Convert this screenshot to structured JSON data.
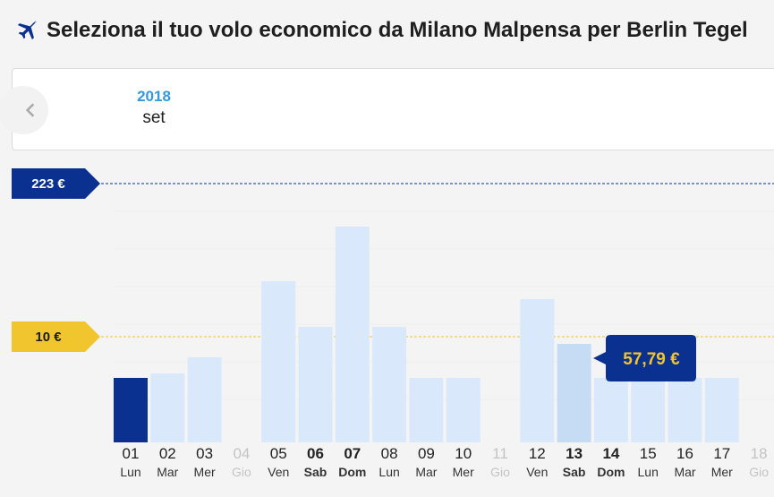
{
  "header": {
    "title": "Seleziona il tuo volo economico da Milano Malpensa per Berlin Tegel",
    "icon": "airplane-icon"
  },
  "calendar": {
    "year": "2018",
    "month": "set"
  },
  "colors": {
    "selected": "#0b3190",
    "bar": "#d9e9fb",
    "hover": "#c6dcf4",
    "max_tag": "#0b3190",
    "min_tag": "#f0c52d"
  },
  "chart_data": {
    "type": "bar",
    "max_label": "223 €",
    "min_label": "10 €",
    "tooltip": {
      "day": "13",
      "price": "57,79 €"
    },
    "selected_day": "01",
    "days": [
      {
        "num": "01",
        "name": "Lun",
        "value": 72,
        "selected": true
      },
      {
        "num": "02",
        "name": "Mar",
        "value": 77
      },
      {
        "num": "03",
        "name": "Mer",
        "value": 95
      },
      {
        "num": "04",
        "name": "Gio",
        "value": null,
        "disabled": true
      },
      {
        "num": "05",
        "name": "Ven",
        "value": 180
      },
      {
        "num": "06",
        "name": "Sab",
        "value": 129,
        "bold": true
      },
      {
        "num": "07",
        "name": "Dom",
        "value": 241,
        "bold": true
      },
      {
        "num": "08",
        "name": "Lun",
        "value": 129
      },
      {
        "num": "09",
        "name": "Mar",
        "value": 72
      },
      {
        "num": "10",
        "name": "Mer",
        "value": 72
      },
      {
        "num": "11",
        "name": "Gio",
        "value": null,
        "disabled": true
      },
      {
        "num": "12",
        "name": "Ven",
        "value": 160
      },
      {
        "num": "13",
        "name": "Sab",
        "value": 110,
        "bold": true,
        "hover": true
      },
      {
        "num": "14",
        "name": "Dom",
        "value": 72,
        "bold": true
      },
      {
        "num": "15",
        "name": "Lun",
        "value": 72
      },
      {
        "num": "16",
        "name": "Mar",
        "value": 72
      },
      {
        "num": "17",
        "name": "Mer",
        "value": 72
      },
      {
        "num": "18",
        "name": "Gio",
        "value": null,
        "disabled": true
      }
    ]
  }
}
